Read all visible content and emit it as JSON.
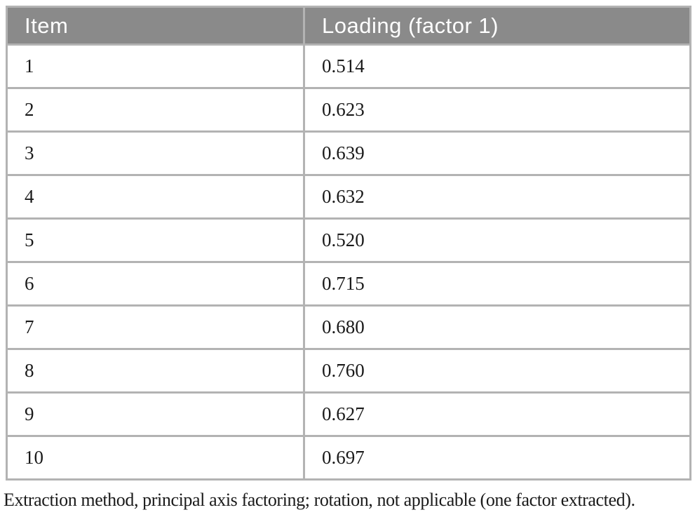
{
  "table": {
    "columns": [
      {
        "label": "Item"
      },
      {
        "label": "Loading (factor 1)"
      }
    ],
    "rows": [
      {
        "item": "1",
        "loading": "0.514"
      },
      {
        "item": "2",
        "loading": "0.623"
      },
      {
        "item": "3",
        "loading": "0.639"
      },
      {
        "item": "4",
        "loading": "0.632"
      },
      {
        "item": "5",
        "loading": "0.520"
      },
      {
        "item": "6",
        "loading": "0.715"
      },
      {
        "item": "7",
        "loading": "0.680"
      },
      {
        "item": "8",
        "loading": "0.760"
      },
      {
        "item": "9",
        "loading": "0.627"
      },
      {
        "item": "10",
        "loading": "0.697"
      }
    ],
    "footnote": "Extraction method, principal axis factoring; rotation, not applicable (one factor extracted)."
  },
  "colors": {
    "header_background": "#8a8a8a",
    "header_text": "#ffffff",
    "border": "#b3b3b3",
    "body_text": "#1a1a1a"
  },
  "chart_data": {
    "type": "table",
    "columns": [
      "Item",
      "Loading (factor 1)"
    ],
    "items": [
      1,
      2,
      3,
      4,
      5,
      6,
      7,
      8,
      9,
      10
    ],
    "loadings": [
      0.514,
      0.623,
      0.639,
      0.632,
      0.52,
      0.715,
      0.68,
      0.76,
      0.627,
      0.697
    ],
    "footnote": "Extraction method, principal axis factoring; rotation, not applicable (one factor extracted)."
  }
}
